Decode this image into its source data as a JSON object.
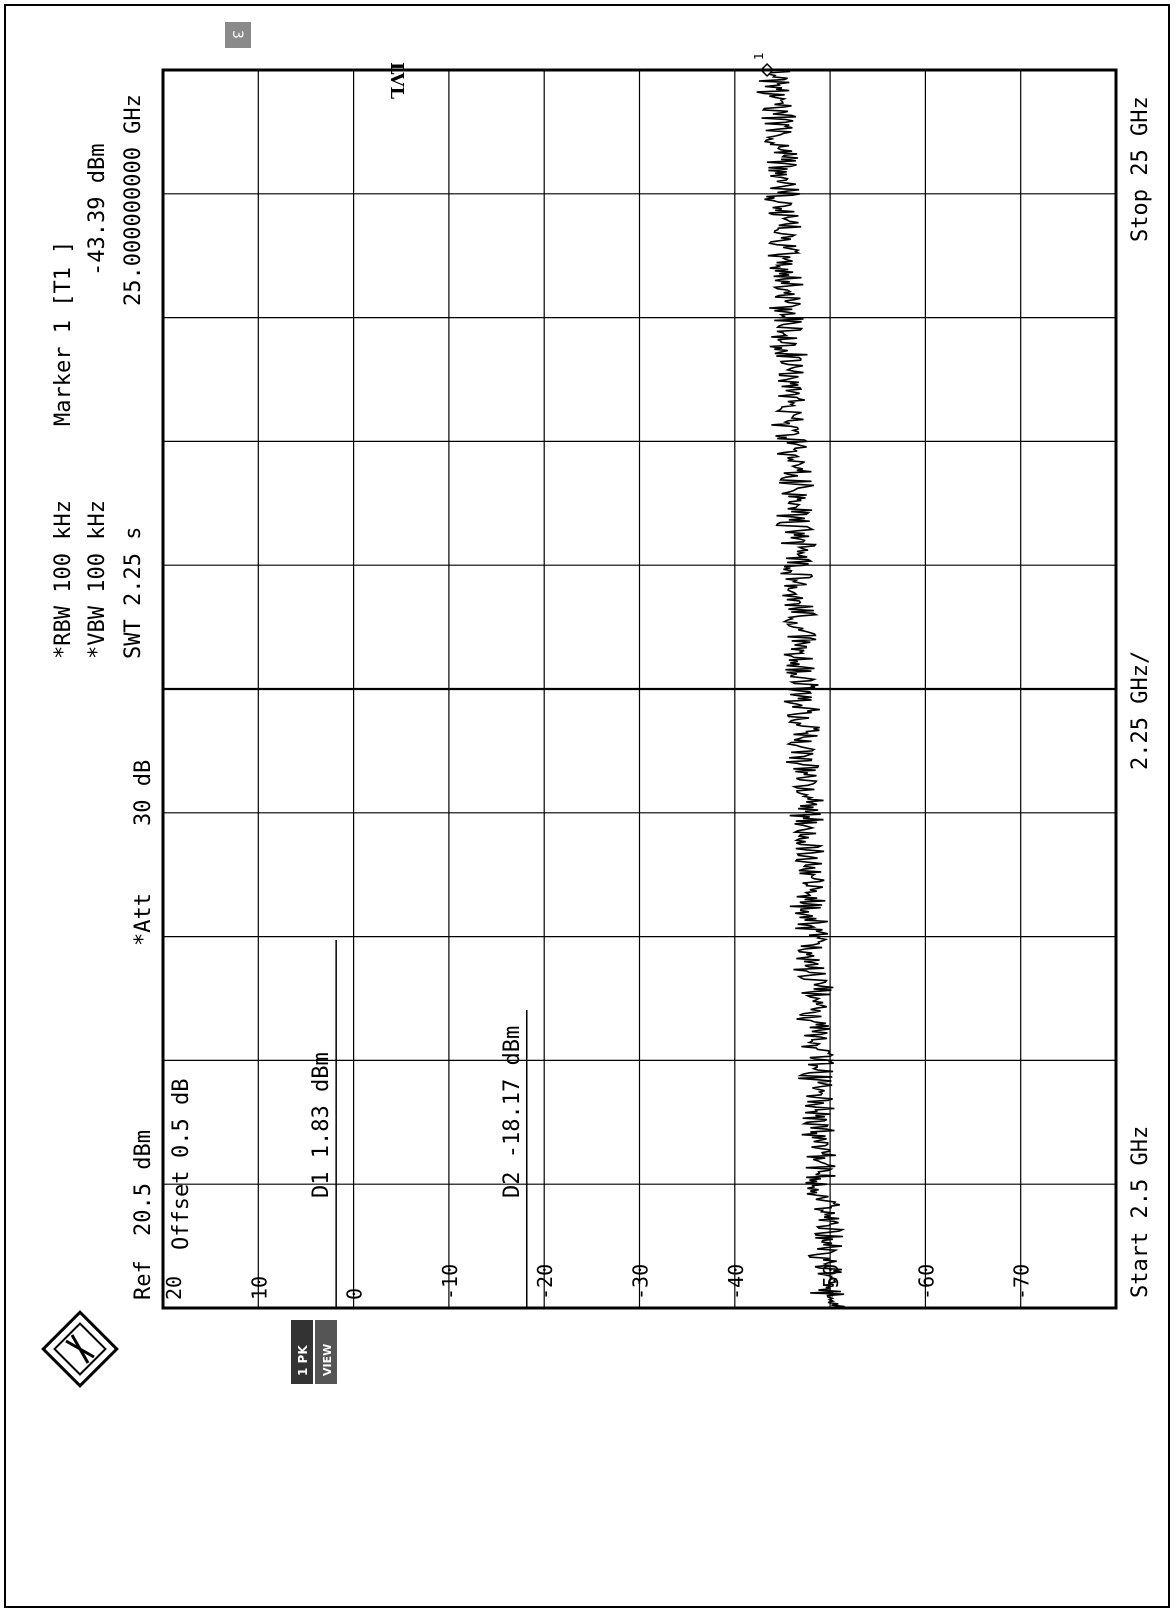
{
  "header": {
    "ref_label": "Ref",
    "ref_value": "20.5 dBm",
    "offset_label": "Offset",
    "offset_value": "0.5 dB",
    "att_label": "*Att",
    "att_value": "30 dB",
    "rbw": "*RBW 100 kHz",
    "vbw": "*VBW 100 kHz",
    "swt": "SWT 2.25 s",
    "marker_label": "Marker 1 [T1 ]",
    "marker_level": "-43.39 dBm",
    "marker_freq": "25.000000000 GHz",
    "lvl_badge": "LVL",
    "trace_badge_1": "1 PK",
    "trace_badge_2": "VIEW",
    "corner_badge": "3"
  },
  "footer": {
    "start": "Start 2.5 GHz",
    "span": "2.25 GHz/",
    "stop": "Stop 25 GHz"
  },
  "lines": {
    "d1_label": "D1 1.83 dBm",
    "d2_label": "D2 -18.17 dBm"
  },
  "chart_data": {
    "type": "line",
    "x_start_ghz": 2.5,
    "x_stop_ghz": 25,
    "x_step_ghz": 2.25,
    "y_top_dbm": 20,
    "y_bottom_dbm": -80,
    "y_step_db": 10,
    "y_tick_labels": [
      "20",
      "10",
      "0",
      "-10",
      "-20",
      "-30",
      "-40",
      "-50",
      "-60",
      "-70"
    ],
    "display_lines": [
      {
        "label": "D1",
        "value_dbm": 1.83
      },
      {
        "label": "D2",
        "value_dbm": -18.17
      }
    ],
    "series": [
      {
        "x_ghz": [
          2.5,
          4.75,
          7.0,
          9.25,
          11.5,
          13.75,
          16.0,
          18.25,
          20.5,
          22.75,
          25.0
        ],
        "y_dbm": [
          -50,
          -49,
          -48.5,
          -48,
          -47.5,
          -47,
          -46.5,
          -46,
          -45.5,
          -45,
          -44
        ]
      }
    ],
    "marker": {
      "label": "1",
      "x_ghz": 25.0,
      "y_dbm": -43.39
    }
  },
  "colors": {
    "ink": "#000000",
    "grid": "#000000",
    "paper": "#ffffff"
  }
}
